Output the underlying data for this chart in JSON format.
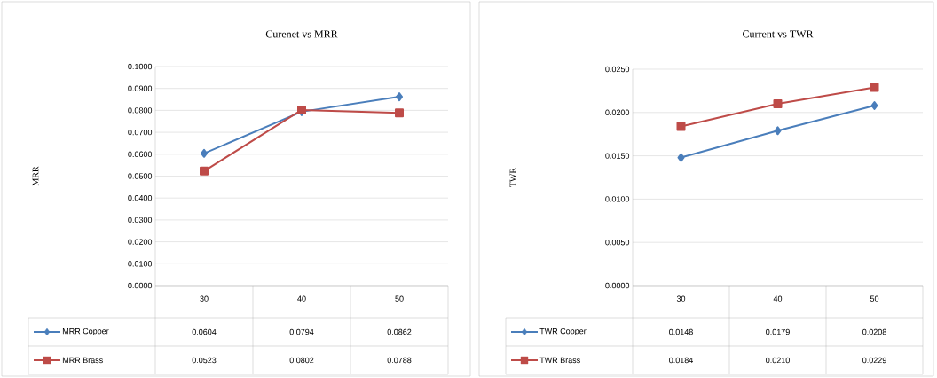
{
  "chart_data": [
    {
      "type": "line",
      "title": "Curenet vs MRR",
      "ylabel": "MRR",
      "categories": [
        "30",
        "40",
        "50"
      ],
      "series": [
        {
          "name": "MRR Copper",
          "color": "#4a7ebb",
          "marker": "diamond",
          "values": [
            0.0604,
            0.0794,
            0.0862
          ],
          "value_labels": [
            "0.0604",
            "0.0794",
            "0.0862"
          ]
        },
        {
          "name": "MRR Brass",
          "color": "#be4b48",
          "marker": "square",
          "values": [
            0.0523,
            0.0802,
            0.0788
          ],
          "value_labels": [
            "0.0523",
            "0.0802",
            "0.0788"
          ]
        }
      ],
      "ylim": [
        0,
        0.1
      ],
      "yticks": [
        {
          "value": 0,
          "label": "0.0000"
        },
        {
          "value": 0.01,
          "label": "0.0100"
        },
        {
          "value": 0.02,
          "label": "0.0200"
        },
        {
          "value": 0.03,
          "label": "0.0300"
        },
        {
          "value": 0.04,
          "label": "0.0400"
        },
        {
          "value": 0.05,
          "label": "0.0500"
        },
        {
          "value": 0.06,
          "label": "0.0600"
        },
        {
          "value": 0.07,
          "label": "0.0700"
        },
        {
          "value": 0.08,
          "label": "0.0800"
        },
        {
          "value": 0.09,
          "label": "0.0900"
        },
        {
          "value": 0.1,
          "label": "0.1000"
        }
      ],
      "grid": "y",
      "legend": "bottom"
    },
    {
      "type": "line",
      "title": "Current vs TWR",
      "ylabel": "TWR",
      "categories": [
        "30",
        "40",
        "50"
      ],
      "series": [
        {
          "name": "TWR Copper",
          "color": "#4a7ebb",
          "marker": "diamond",
          "values": [
            0.0148,
            0.0179,
            0.0208
          ],
          "value_labels": [
            "0.0148",
            "0.0179",
            "0.0208"
          ]
        },
        {
          "name": "TWR Brass",
          "color": "#be4b48",
          "marker": "square",
          "values": [
            0.0184,
            0.021,
            0.0229
          ],
          "value_labels": [
            "0.0184",
            "0.0210",
            "0.0229"
          ]
        }
      ],
      "ylim": [
        0,
        0.025
      ],
      "yticks": [
        {
          "value": 0,
          "label": "0.0000"
        },
        {
          "value": 0.005,
          "label": "0.0050"
        },
        {
          "value": 0.01,
          "label": "0.0100"
        },
        {
          "value": 0.015,
          "label": "0.0150"
        },
        {
          "value": 0.02,
          "label": "0.0200"
        },
        {
          "value": 0.025,
          "label": "0.0250"
        }
      ],
      "grid": "y",
      "legend": "bottom"
    }
  ]
}
